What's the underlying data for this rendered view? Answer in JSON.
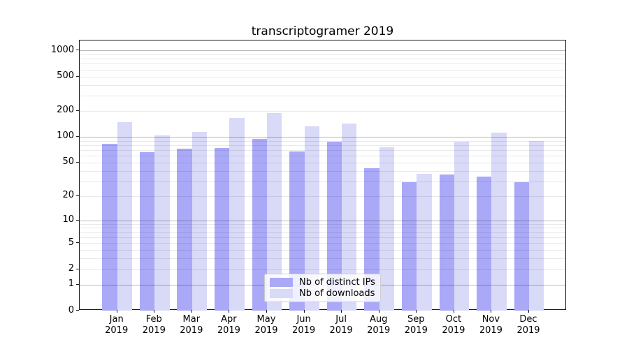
{
  "title": "transcriptogramer 2019",
  "chart_data": {
    "type": "bar",
    "title": "transcriptogramer 2019",
    "categories": [
      "Jan",
      "Feb",
      "Mar",
      "Apr",
      "May",
      "Jun",
      "Jul",
      "Aug",
      "Sep",
      "Oct",
      "Nov",
      "Dec"
    ],
    "category_year": "2019",
    "series": [
      {
        "name": "Nb of distinct IPs",
        "color": "#a9a9f8",
        "values": [
          83,
          66,
          73,
          74,
          94,
          68,
          88,
          43,
          29,
          36,
          34,
          29
        ]
      },
      {
        "name": "Nb of downloads",
        "color": "#d9d9f8",
        "values": [
          148,
          103,
          115,
          165,
          187,
          133,
          142,
          76,
          37,
          88,
          112,
          90
        ]
      }
    ],
    "xlabel": "",
    "ylabel": "",
    "y_scale": "symlog-log1p",
    "ylim": [
      0,
      1300
    ],
    "y_ticks": [
      1000,
      500,
      200,
      100,
      50,
      20,
      10,
      5,
      2,
      1,
      0
    ],
    "grid": "horizontal major and minor gridlines, drawn over bars",
    "legend_position": "inside lower-center",
    "colors": {
      "major_gridline": "rgba(0,0,0,0.28)",
      "minor_gridline": "rgba(0,0,0,0.085)",
      "axis": "#1a1a1a",
      "background": "#ffffff"
    }
  }
}
